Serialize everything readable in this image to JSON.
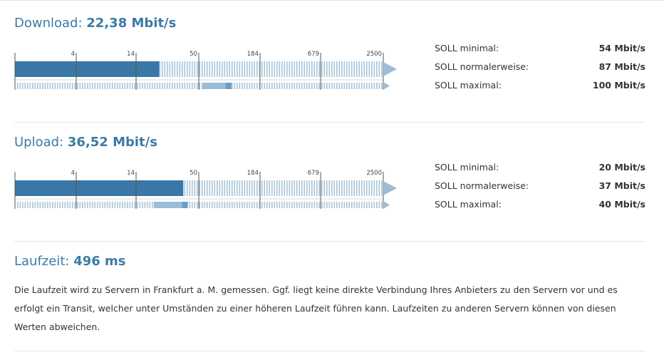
{
  "download": {
    "label": "Download:",
    "value": "22,38 Mbit/s",
    "scale_ticks": [
      "4",
      "14",
      "50",
      "184",
      "679",
      "2500"
    ],
    "measured_mbit": 22.38,
    "expected_range_mbit": [
      54,
      100
    ],
    "stats": [
      {
        "label": "SOLL minimal:",
        "value": "54 Mbit/s"
      },
      {
        "label": "SOLL normalerweise:",
        "value": "87 Mbit/s"
      },
      {
        "label": "SOLL maximal:",
        "value": "100 Mbit/s"
      }
    ]
  },
  "upload": {
    "label": "Upload:",
    "value": "36,52 Mbit/s",
    "scale_ticks": [
      "4",
      "14",
      "50",
      "184",
      "679",
      "2500"
    ],
    "measured_mbit": 36.52,
    "expected_range_mbit": [
      20,
      40
    ],
    "stats": [
      {
        "label": "SOLL minimal:",
        "value": "20 Mbit/s"
      },
      {
        "label": "SOLL normalerweise:",
        "value": "37 Mbit/s"
      },
      {
        "label": "SOLL maximal:",
        "value": "40 Mbit/s"
      }
    ]
  },
  "latency": {
    "label": "Laufzeit:",
    "value": "496 ms",
    "description": "Die Laufzeit wird zu Servern in Frankfurt a. M. gemessen. Ggf. liegt keine direkte Verbindung Ihres Anbieters zu den Servern vor und es erfolgt ein Transit, welcher unter Umständen zu einer höheren Laufzeit führen kann. Laufzeiten zu anderen Servern können von diesen Werten abweichen."
  },
  "colors": {
    "accent": "#3b7ba6",
    "bar": "#3a77a6",
    "stripe": "#a9c4d8",
    "range": "#9bbdd6",
    "range_mid": "#6f9ec2",
    "arrow": "#9fbcd4"
  }
}
